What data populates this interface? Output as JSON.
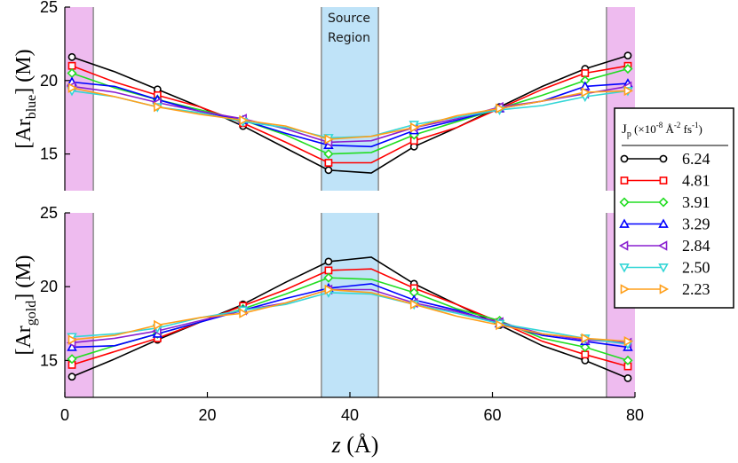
{
  "chart_data": {
    "type": "line",
    "x": [
      1,
      7,
      13,
      19,
      25,
      31,
      37,
      43,
      49,
      55,
      61,
      67,
      73,
      79
    ],
    "xlabel": {
      "italic": "z",
      "rest": " (Å)"
    },
    "xlim": [
      0,
      80
    ],
    "xticks": [
      "0",
      "20",
      "40",
      "60",
      "80"
    ],
    "legend": {
      "title": {
        "J": "J",
        "sub": "p",
        "u1": " (×10",
        "sup1": "-8",
        "u2": " Å",
        "sup2": "-2",
        "u3": " fs",
        "sup3": "-1",
        "u4": ")"
      },
      "placement": "right"
    },
    "annotation": [
      "Source",
      "Region"
    ],
    "colors": {
      "shade_wall": "#eebbef",
      "shade_source": "#bfe3f8",
      "shade_edge": "#8a8a8a"
    },
    "series_meta": [
      {
        "label": "6.24",
        "color": "#000000",
        "marker": "circle"
      },
      {
        "label": "4.81",
        "color": "#ff0000",
        "marker": "square"
      },
      {
        "label": "3.91",
        "color": "#22dd22",
        "marker": "diamond"
      },
      {
        "label": "3.29",
        "color": "#0000ff",
        "marker": "triangle-up"
      },
      {
        "label": "2.84",
        "color": "#8a1fd0",
        "marker": "triangle-left"
      },
      {
        "label": "2.50",
        "color": "#33d6d6",
        "marker": "triangle-down"
      },
      {
        "label": "2.23",
        "color": "#ff9f1a",
        "marker": "triangle-right"
      }
    ],
    "panels": [
      {
        "ylabel": {
          "pre": "[Ar",
          "sub": "blue",
          "post": "] (M)"
        },
        "ylim": [
          12.5,
          25
        ],
        "yticks": [
          "15",
          "20",
          "25"
        ],
        "series": [
          {
            "values": [
              21.6,
              20.6,
              19.4,
              18.2,
              16.9,
              15.4,
              13.9,
              13.7,
              15.5,
              16.8,
              18.2,
              19.6,
              20.8,
              21.7
            ]
          },
          {
            "values": [
              21.0,
              19.9,
              19.0,
              18.2,
              17.1,
              15.8,
              14.4,
              14.4,
              15.9,
              16.8,
              18.1,
              19.4,
              20.5,
              21.0
            ]
          },
          {
            "values": [
              20.5,
              19.5,
              18.7,
              18.0,
              17.3,
              16.3,
              15.0,
              15.1,
              16.3,
              17.2,
              18.1,
              19.0,
              20.0,
              20.8
            ]
          },
          {
            "values": [
              19.9,
              19.6,
              18.7,
              17.9,
              17.3,
              16.4,
              15.6,
              15.5,
              16.6,
              17.3,
              18.1,
              18.6,
              19.6,
              19.8
            ]
          },
          {
            "values": [
              19.6,
              19.2,
              18.5,
              17.9,
              17.4,
              16.7,
              15.8,
              15.9,
              16.8,
              17.4,
              18.2,
              18.6,
              19.1,
              19.6
            ]
          },
          {
            "values": [
              19.3,
              18.9,
              18.2,
              17.8,
              17.2,
              16.8,
              16.1,
              16.2,
              17.0,
              17.5,
              18.0,
              18.3,
              18.9,
              19.3
            ]
          },
          {
            "values": [
              19.5,
              18.9,
              18.2,
              17.7,
              17.3,
              16.9,
              16.0,
              16.2,
              16.8,
              17.6,
              18.1,
              18.6,
              19.2,
              19.3
            ]
          }
        ]
      },
      {
        "ylabel": {
          "pre": "[Ar",
          "sub": "gold",
          "post": "] (M)"
        },
        "ylim": [
          12.5,
          25
        ],
        "yticks": [
          "15",
          "20",
          "25"
        ],
        "series": [
          {
            "values": [
              13.9,
              15.1,
              16.4,
              17.6,
              18.8,
              20.3,
              21.7,
              22.0,
              20.2,
              18.8,
              17.4,
              16.0,
              15.0,
              13.8
            ]
          },
          {
            "values": [
              14.7,
              15.6,
              16.5,
              17.6,
              18.7,
              19.8,
              21.1,
              21.2,
              19.9,
              18.8,
              17.6,
              16.3,
              15.4,
              14.6
            ]
          },
          {
            "values": [
              15.1,
              16.0,
              16.8,
              17.6,
              18.5,
              19.5,
              20.6,
              20.5,
              19.6,
              18.5,
              17.7,
              16.5,
              15.9,
              15.0
            ]
          },
          {
            "values": [
              15.9,
              16.0,
              16.8,
              17.6,
              18.4,
              19.2,
              19.9,
              20.2,
              19.1,
              18.4,
              17.5,
              16.7,
              16.3,
              15.9
            ]
          },
          {
            "values": [
              16.2,
              16.5,
              17.0,
              17.7,
              18.4,
              18.9,
              19.8,
              19.8,
              18.9,
              18.3,
              17.6,
              16.8,
              16.4,
              16.2
            ]
          },
          {
            "values": [
              16.6,
              16.8,
              17.2,
              17.9,
              18.4,
              18.8,
              19.6,
              19.5,
              18.8,
              18.2,
              17.5,
              17.0,
              16.5,
              16.1
            ]
          },
          {
            "values": [
              16.4,
              16.7,
              17.4,
              17.9,
              18.2,
              18.9,
              19.8,
              19.6,
              18.8,
              18.0,
              17.4,
              16.8,
              16.5,
              16.3
            ]
          }
        ]
      }
    ]
  }
}
